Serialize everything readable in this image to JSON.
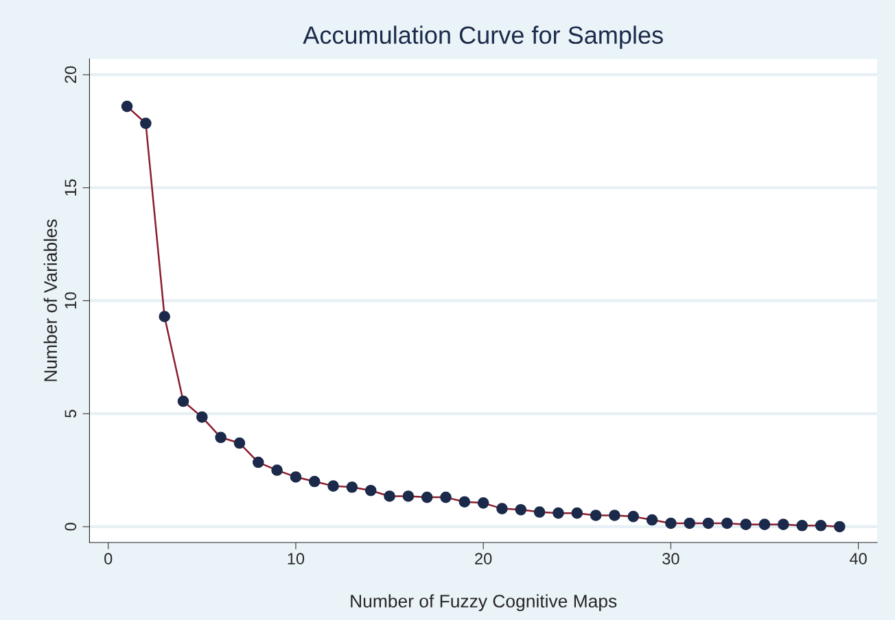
{
  "chart_data": {
    "type": "line",
    "title": "Accumulation Curve for Samples",
    "xlabel": "Number of Fuzzy Cognitive Maps",
    "ylabel": "Number of Variables",
    "x": [
      1,
      2,
      3,
      4,
      5,
      6,
      7,
      8,
      9,
      10,
      11,
      12,
      13,
      14,
      15,
      16,
      17,
      18,
      19,
      20,
      21,
      22,
      23,
      24,
      25,
      26,
      27,
      28,
      29,
      30,
      31,
      32,
      33,
      34,
      35,
      36,
      37,
      38,
      39
    ],
    "series": [
      {
        "color": "#8b1c2c",
        "values": [
          18.6,
          17.85,
          9.3,
          5.55,
          4.85,
          3.95,
          3.7,
          2.85,
          2.5,
          2.2,
          2.0,
          1.8,
          1.75,
          1.6,
          1.35,
          1.35,
          1.3,
          1.3,
          1.1,
          1.05,
          0.8,
          0.75,
          0.65,
          0.6,
          0.6,
          0.5,
          0.5,
          0.45,
          0.3,
          0.15,
          0.15,
          0.15,
          0.15,
          0.1,
          0.1,
          0.1,
          0.05,
          0.05,
          0.0
        ]
      }
    ],
    "marker": "circle",
    "line_style": "solid",
    "grid": "y",
    "xlim": [
      -1,
      41
    ],
    "xticks": [
      0,
      10,
      20,
      30,
      40
    ],
    "ylim": [
      -0.7,
      20.7
    ],
    "yticks": [
      0,
      5,
      10,
      15,
      20
    ]
  }
}
